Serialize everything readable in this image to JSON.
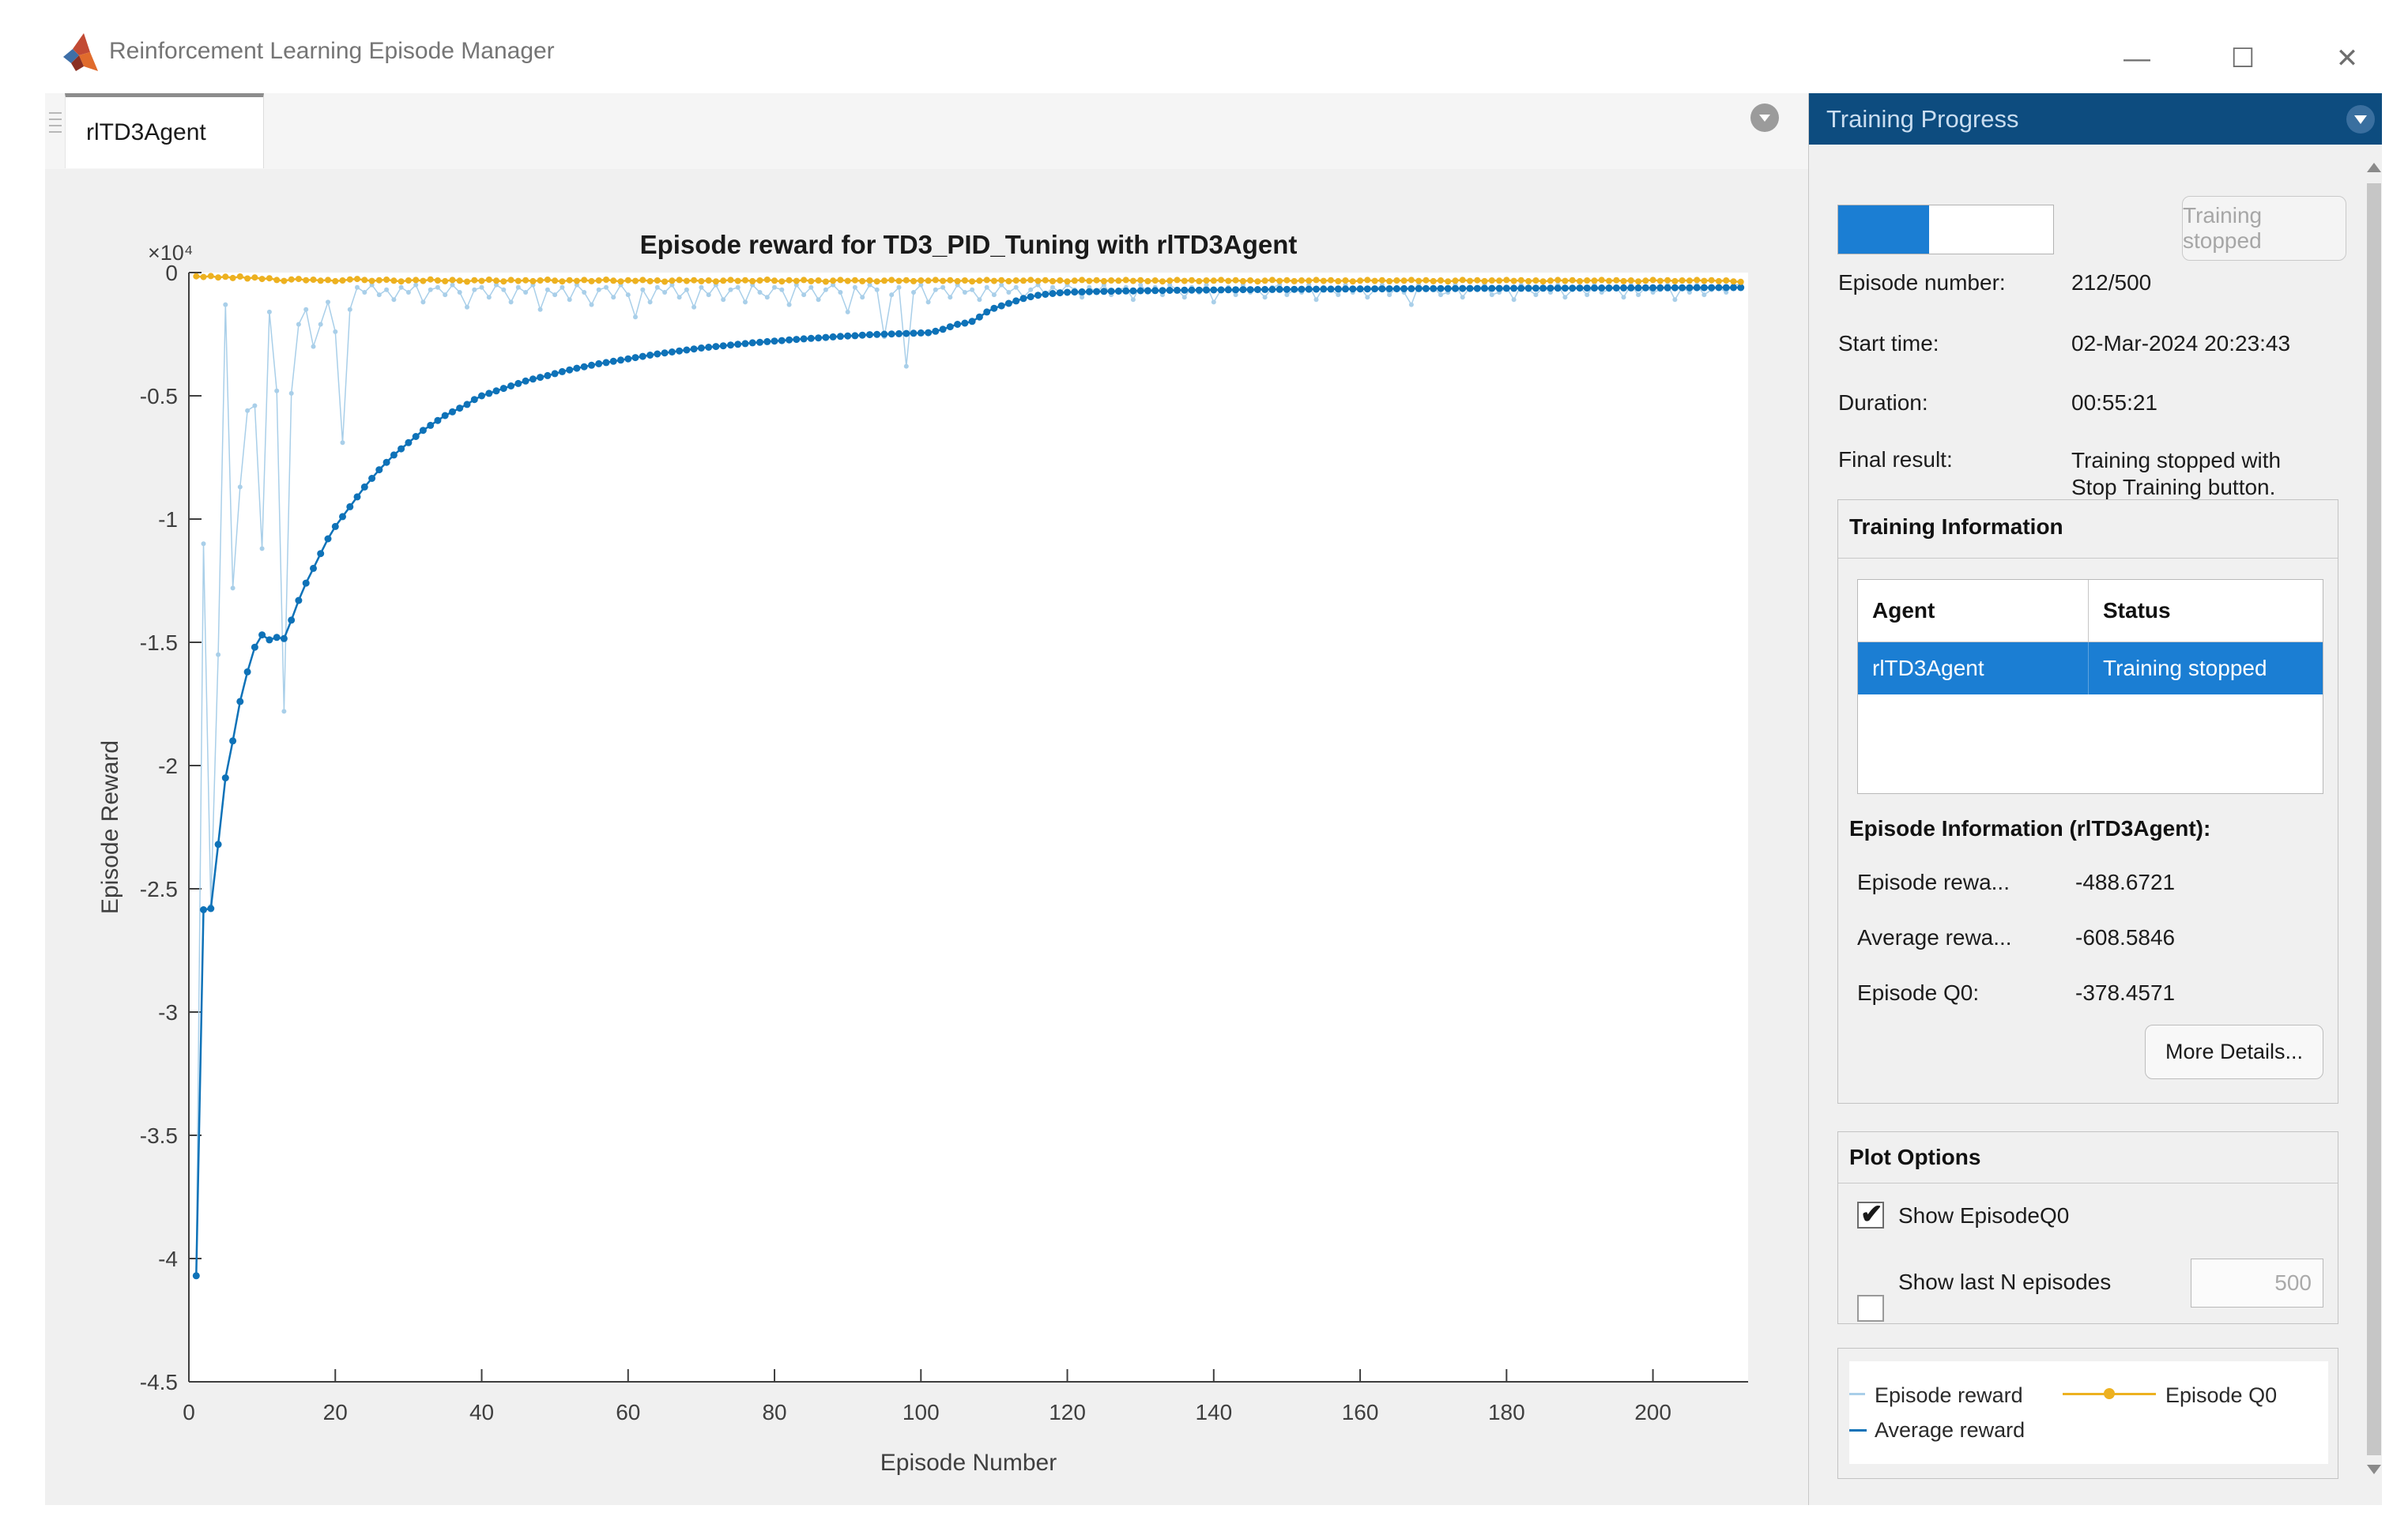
{
  "window": {
    "title": "Reinforcement Learning Episode Manager",
    "controls": {
      "minimize": "—",
      "maximize": "☐",
      "close": "✕"
    }
  },
  "tab": {
    "label": "rlTD3Agent"
  },
  "right_panel": {
    "header": "Training Progress",
    "progress": {
      "percent": 42.4,
      "button_label": "Training stopped"
    },
    "info_rows": [
      {
        "label": "Episode number:",
        "value": "212/500"
      },
      {
        "label": "Start time:",
        "value": "02-Mar-2024 20:23:43"
      },
      {
        "label": "Duration:",
        "value": "00:55:21"
      },
      {
        "label": "Final result:",
        "value": "Training stopped with Stop Training button."
      }
    ],
    "training_information": {
      "title": "Training Information",
      "table": {
        "columns": [
          "Agent",
          "Status"
        ],
        "rows": [
          [
            "rlTD3Agent",
            "Training stopped"
          ]
        ]
      }
    },
    "episode_information": {
      "title": "Episode Information (rlTD3Agent):",
      "rows": [
        {
          "label": "Episode rewa...",
          "value": "-488.6721"
        },
        {
          "label": "Average rewa...",
          "value": "-608.5846"
        },
        {
          "label": "Episode Q0:",
          "value": "-378.4571"
        }
      ],
      "more_details_label": "More Details..."
    },
    "plot_options": {
      "title": "Plot Options",
      "show_episode_q0": {
        "label": "Show EpisodeQ0",
        "checked": true
      },
      "show_last_n": {
        "label": "Show last N episodes",
        "checked": false,
        "value": "500"
      }
    },
    "legend": {
      "entries": [
        {
          "label": "Episode reward",
          "color": "#a9cfe9"
        },
        {
          "label": "Average reward",
          "color": "#0e72b8"
        },
        {
          "label": "Episode Q0",
          "color": "#edb120"
        }
      ]
    }
  },
  "chart_data": {
    "type": "line",
    "title": "Episode reward for TD3_PID_Tuning with rlTD3Agent",
    "xlabel": "Episode Number",
    "ylabel": "Episode Reward",
    "multiplier_label": "×10⁴",
    "xlim": [
      0,
      213
    ],
    "ylim": [
      -45000,
      0
    ],
    "x_ticks": [
      0,
      20,
      40,
      60,
      80,
      100,
      120,
      140,
      160,
      180,
      200
    ],
    "y_ticks": [
      {
        "v": 0,
        "label": "0"
      },
      {
        "v": -5000,
        "label": "-0.5"
      },
      {
        "v": -10000,
        "label": "-1"
      },
      {
        "v": -15000,
        "label": "-1.5"
      },
      {
        "v": -20000,
        "label": "-2"
      },
      {
        "v": -25000,
        "label": "-2.5"
      },
      {
        "v": -30000,
        "label": "-3"
      },
      {
        "v": -35000,
        "label": "-3.5"
      },
      {
        "v": -40000,
        "label": "-4"
      },
      {
        "v": -45000,
        "label": "-4.5"
      }
    ],
    "x_start": 1,
    "grid": false,
    "legend_position": "bottom-right-panel",
    "series": [
      {
        "name": "Episode reward",
        "color": "#a9cfe9",
        "values": [
          -40700,
          -11000,
          -25700,
          -15500,
          -1300,
          -12800,
          -8700,
          -5600,
          -5400,
          -11200,
          -1600,
          -4800,
          -17800,
          -4900,
          -2100,
          -1500,
          -3000,
          -2100,
          -1200,
          -2400,
          -6900,
          -1500,
          -600,
          -800,
          -500,
          -900,
          -700,
          -1100,
          -600,
          -800,
          -500,
          -1200,
          -700,
          -600,
          -900,
          -500,
          -800,
          -1400,
          -700,
          -600,
          -1000,
          -500,
          -700,
          -1200,
          -600,
          -800,
          -500,
          -1500,
          -700,
          -900,
          -600,
          -1100,
          -500,
          -800,
          -1300,
          -700,
          -600,
          -1000,
          -500,
          -900,
          -1800,
          -700,
          -1200,
          -600,
          -800,
          -500,
          -1000,
          -700,
          -1400,
          -600,
          -900,
          -500,
          -1100,
          -700,
          -600,
          -1200,
          -500,
          -800,
          -1000,
          -600,
          -700,
          -1300,
          -500,
          -900,
          -600,
          -1100,
          -700,
          -500,
          -800,
          -1600,
          -600,
          -1000,
          -500,
          -700,
          -2600,
          -900,
          -600,
          -3800,
          -800,
          -500,
          -1200,
          -700,
          -600,
          -1000,
          -500,
          -800,
          -700,
          -1100,
          -600,
          -900,
          -500,
          -800,
          -600,
          -1000,
          -700,
          -500,
          -900,
          -600,
          -800,
          -500,
          -700,
          -1000,
          -600,
          -800,
          -500,
          -900,
          -700,
          -600,
          -1100,
          -500,
          -800,
          -600,
          -900,
          -500,
          -700,
          -1000,
          -600,
          -800,
          -500,
          -1200,
          -700,
          -600,
          -900,
          -500,
          -800,
          -700,
          -1000,
          -600,
          -500,
          -900,
          -700,
          -800,
          -500,
          -1100,
          -600,
          -700,
          -900,
          -500,
          -800,
          -600,
          -1000,
          -700,
          -500,
          -900,
          -600,
          -800,
          -1300,
          -500,
          -700,
          -600,
          -900,
          -800,
          -500,
          -1000,
          -600,
          -700,
          -500,
          -900,
          -800,
          -600,
          -1100,
          -500,
          -700,
          -900,
          -600,
          -800,
          -500,
          -1000,
          -700,
          -600,
          -900,
          -500,
          -800,
          -700,
          -600,
          -1000,
          -500,
          -900,
          -600,
          -800,
          -700,
          -500,
          -1100,
          -600,
          -800,
          -500,
          -900,
          -700,
          -600,
          -800,
          -500,
          -488.67
        ]
      },
      {
        "name": "Average reward",
        "color": "#0e72b8",
        "values": [
          -40700,
          -25850,
          -25800,
          -23200,
          -20500,
          -19000,
          -17400,
          -16200,
          -15200,
          -14700,
          -14900,
          -14800,
          -14850,
          -14100,
          -13300,
          -12600,
          -12000,
          -11400,
          -10800,
          -10300,
          -9900,
          -9500,
          -9100,
          -8700,
          -8350,
          -8000,
          -7700,
          -7400,
          -7150,
          -6900,
          -6650,
          -6400,
          -6200,
          -6000,
          -5800,
          -5650,
          -5500,
          -5350,
          -5150,
          -5000,
          -4900,
          -4800,
          -4700,
          -4600,
          -4500,
          -4400,
          -4320,
          -4250,
          -4180,
          -4100,
          -4020,
          -3950,
          -3880,
          -3820,
          -3760,
          -3700,
          -3650,
          -3600,
          -3550,
          -3500,
          -3450,
          -3400,
          -3350,
          -3300,
          -3260,
          -3220,
          -3180,
          -3140,
          -3100,
          -3060,
          -3030,
          -3000,
          -2970,
          -2940,
          -2910,
          -2880,
          -2850,
          -2830,
          -2800,
          -2780,
          -2760,
          -2730,
          -2710,
          -2690,
          -2670,
          -2650,
          -2630,
          -2610,
          -2590,
          -2570,
          -2560,
          -2540,
          -2520,
          -2510,
          -2500,
          -2490,
          -2480,
          -2470,
          -2460,
          -2450,
          -2440,
          -2380,
          -2300,
          -2200,
          -2100,
          -2050,
          -1980,
          -1800,
          -1600,
          -1450,
          -1350,
          -1250,
          -1150,
          -1050,
          -980,
          -920,
          -880,
          -850,
          -820,
          -800,
          -790,
          -783,
          -776,
          -770,
          -764,
          -758,
          -753,
          -748,
          -743,
          -738,
          -734,
          -730,
          -726,
          -722,
          -719,
          -716,
          -713,
          -710,
          -707,
          -704,
          -701,
          -698,
          -696,
          -693,
          -691,
          -689,
          -687,
          -685,
          -683,
          -681,
          -679,
          -677,
          -675,
          -673,
          -671,
          -669,
          -668,
          -666,
          -665,
          -663,
          -662,
          -660,
          -659,
          -657,
          -656,
          -655,
          -653,
          -652,
          -651,
          -650,
          -648,
          -647,
          -646,
          -645,
          -644,
          -643,
          -642,
          -641,
          -640,
          -639,
          -638,
          -637,
          -636,
          -635,
          -634,
          -633,
          -632,
          -631,
          -630,
          -629,
          -628,
          -627,
          -626,
          -625,
          -624,
          -623,
          -622,
          -621,
          -620,
          -619,
          -618,
          -617,
          -616,
          -615,
          -614,
          -613,
          -612,
          -611,
          -610,
          -609,
          -609,
          -608.58
        ]
      },
      {
        "name": "Episode Q0",
        "color": "#edb120",
        "values": [
          -150,
          -180,
          -140,
          -200,
          -170,
          -220,
          -160,
          -240,
          -200,
          -260,
          -230,
          -300,
          -340,
          -280,
          -260,
          -310,
          -290,
          -330,
          -300,
          -350,
          -320,
          -280,
          -260,
          -300,
          -340,
          -310,
          -290,
          -330,
          -360,
          -320,
          -300,
          -340,
          -280,
          -320,
          -350,
          -300,
          -330,
          -370,
          -310,
          -340,
          -290,
          -330,
          -360,
          -300,
          -340,
          -310,
          -350,
          -320,
          -290,
          -330,
          -360,
          -310,
          -340,
          -300,
          -350,
          -320,
          -290,
          -330,
          -360,
          -310,
          -340,
          -300,
          -350,
          -320,
          -370,
          -330,
          -300,
          -340,
          -310,
          -350,
          -320,
          -360,
          -330,
          -300,
          -340,
          -310,
          -350,
          -320,
          -290,
          -330,
          -360,
          -310,
          -340,
          -300,
          -350,
          -320,
          -370,
          -330,
          -300,
          -340,
          -310,
          -350,
          -320,
          -360,
          -330,
          -300,
          -340,
          -310,
          -350,
          -320,
          -330,
          -300,
          -340,
          -310,
          -350,
          -320,
          -360,
          -330,
          -300,
          -340,
          -310,
          -350,
          -320,
          -330,
          -300,
          -340,
          -310,
          -350,
          -320,
          -360,
          -330,
          -300,
          -340,
          -310,
          -350,
          -320,
          -330,
          -300,
          -340,
          -310,
          -350,
          -320,
          -360,
          -330,
          -300,
          -340,
          -310,
          -350,
          -320,
          -330,
          -300,
          -340,
          -310,
          -350,
          -320,
          -360,
          -330,
          -300,
          -340,
          -310,
          -350,
          -320,
          -330,
          -300,
          -340,
          -310,
          -350,
          -320,
          -360,
          -330,
          -300,
          -340,
          -310,
          -350,
          -320,
          -330,
          -300,
          -340,
          -310,
          -350,
          -320,
          -360,
          -330,
          -300,
          -340,
          -310,
          -350,
          -320,
          -330,
          -300,
          -340,
          -310,
          -350,
          -320,
          -360,
          -330,
          -300,
          -340,
          -310,
          -350,
          -320,
          -330,
          -300,
          -340,
          -310,
          -350,
          -320,
          -360,
          -330,
          -300,
          -340,
          -310,
          -350,
          -320,
          -330,
          -300,
          -340,
          -310,
          -350,
          -320,
          -360,
          -378.46
        ]
      }
    ]
  }
}
